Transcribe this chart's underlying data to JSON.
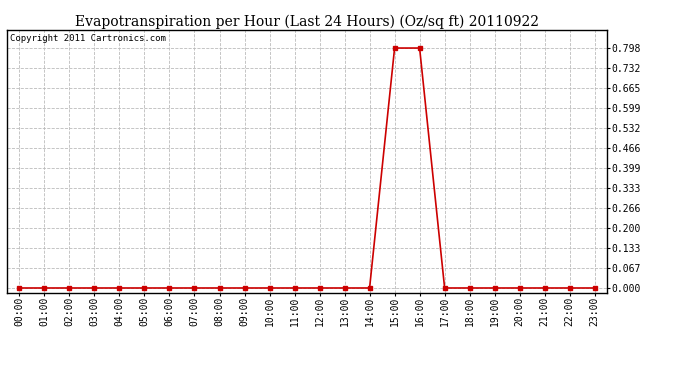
{
  "title": "Evapotranspiration per Hour (Last 24 Hours) (Oz/sq ft) 20110922",
  "copyright_text": "Copyright 2011 Cartronics.com",
  "hours": [
    0,
    1,
    2,
    3,
    4,
    5,
    6,
    7,
    8,
    9,
    10,
    11,
    12,
    13,
    14,
    15,
    16,
    17,
    18,
    19,
    20,
    21,
    22,
    23
  ],
  "hour_labels": [
    "00:00",
    "01:00",
    "02:00",
    "03:00",
    "04:00",
    "05:00",
    "06:00",
    "07:00",
    "08:00",
    "09:00",
    "10:00",
    "11:00",
    "12:00",
    "13:00",
    "14:00",
    "15:00",
    "16:00",
    "17:00",
    "18:00",
    "19:00",
    "20:00",
    "21:00",
    "22:00",
    "23:00"
  ],
  "values": [
    0,
    0,
    0,
    0,
    0,
    0,
    0,
    0,
    0,
    0,
    0,
    0,
    0,
    0,
    0,
    0.798,
    0.798,
    0,
    0,
    0,
    0,
    0,
    0,
    0
  ],
  "line_color": "#cc0000",
  "marker": "s",
  "marker_size": 2.5,
  "background_color": "#ffffff",
  "plot_bg_color": "#ffffff",
  "grid_color": "#bbbbbb",
  "grid_style": "--",
  "yticks": [
    0.0,
    0.067,
    0.133,
    0.2,
    0.266,
    0.333,
    0.399,
    0.466,
    0.532,
    0.599,
    0.665,
    0.732,
    0.798
  ],
  "ylim": [
    -0.015,
    0.858
  ],
  "title_fontsize": 10,
  "copyright_fontsize": 6.5,
  "tick_fontsize": 7
}
